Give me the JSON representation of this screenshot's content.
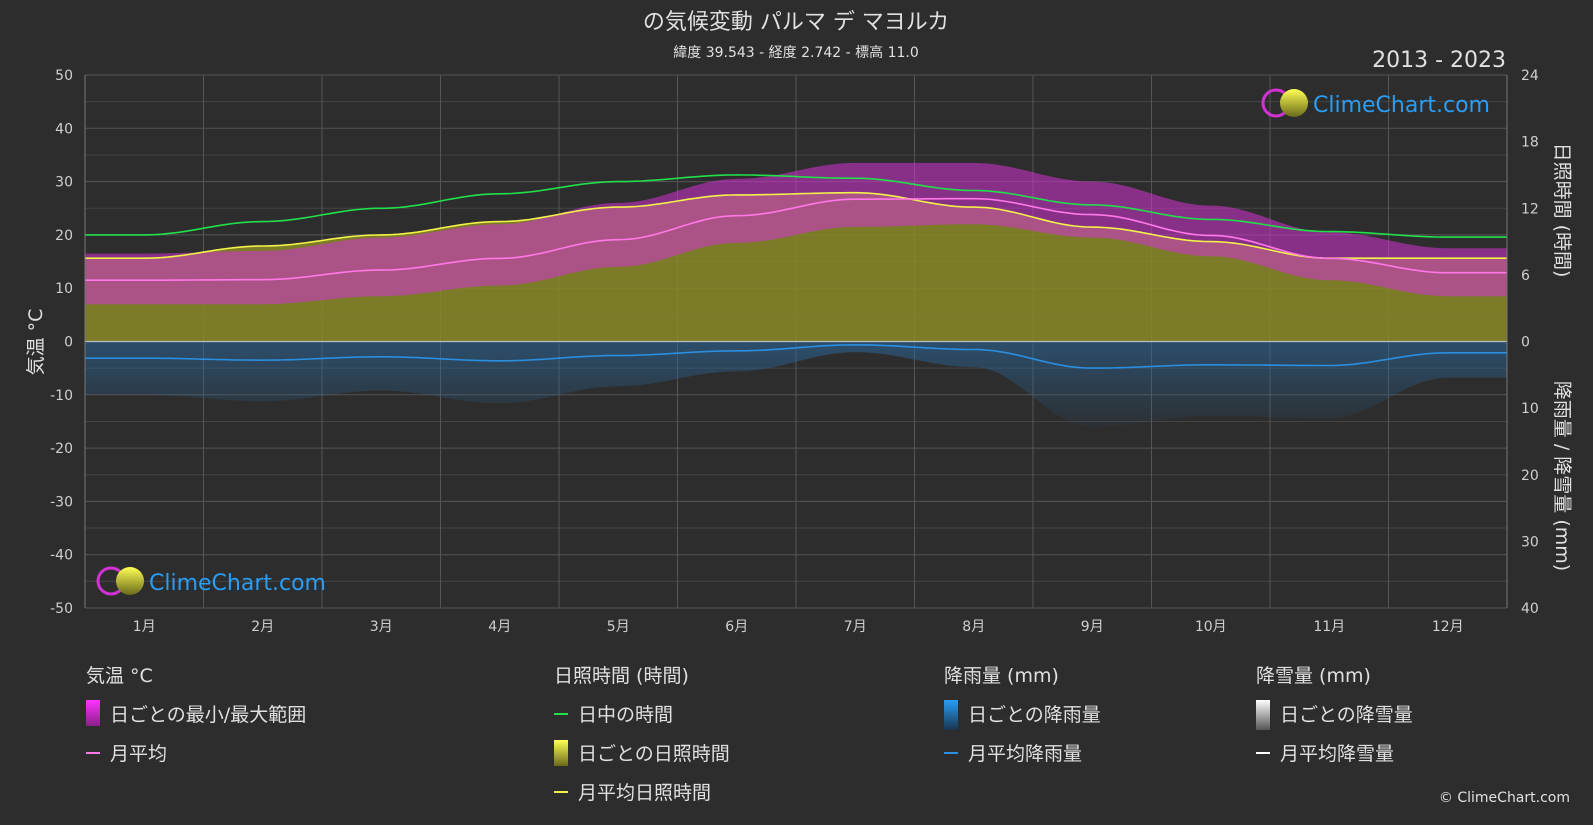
{
  "chart_data": {
    "type": "area",
    "title": "の気候変動 パルマ デ マヨルカ",
    "subtitle": "緯度 39.543 - 経度 2.742 - 標高 11.0",
    "period": "2013 - 2023",
    "ylabel_left": "気温 °C",
    "ylabel_right_top": "日照時間 (時間)",
    "ylabel_right_bottom": "降雨量 / 降雪量 (mm)",
    "categories": [
      "1月",
      "2月",
      "3月",
      "4月",
      "5月",
      "6月",
      "7月",
      "8月",
      "9月",
      "10月",
      "11月",
      "12月"
    ],
    "temp_ticks": [
      "50",
      "40",
      "30",
      "20",
      "10",
      "0",
      "-10",
      "-20",
      "-30",
      "-40",
      "-50"
    ],
    "sun_ticks": [
      "24",
      "18",
      "12",
      "6",
      "0"
    ],
    "rain_ticks": [
      "0",
      "10",
      "20",
      "30",
      "40"
    ],
    "ylim_temp": [
      -50,
      50
    ],
    "ylim_sun": [
      0,
      24
    ],
    "ylim_rain": [
      0,
      40
    ],
    "series": [
      {
        "name": "日中の時間",
        "unit": "hours",
        "values": [
          9.6,
          10.8,
          12.0,
          13.3,
          14.4,
          15.0,
          14.7,
          13.6,
          12.3,
          11.0,
          9.9,
          9.4
        ]
      },
      {
        "name": "月平均日照時間",
        "unit": "hours",
        "values": [
          7.5,
          8.6,
          9.6,
          10.8,
          12.1,
          13.2,
          13.4,
          12.1,
          10.3,
          9.0,
          7.5,
          7.5
        ]
      },
      {
        "name": "月平均",
        "unit": "°C",
        "values": [
          11.5,
          11.6,
          13.4,
          15.6,
          19.1,
          23.6,
          26.7,
          26.8,
          23.8,
          19.9,
          15.6,
          12.9
        ]
      },
      {
        "name": "日ごとの最小/最大範囲",
        "unit": "°C",
        "min": [
          7.0,
          7.0,
          8.5,
          10.5,
          14.0,
          18.5,
          21.5,
          22.0,
          19.5,
          16.0,
          11.5,
          8.5
        ],
        "max": [
          16.5,
          17.0,
          19.5,
          22.0,
          26.0,
          30.5,
          33.5,
          33.5,
          30.0,
          25.5,
          20.5,
          17.5
        ]
      },
      {
        "name": "月平均降雨量",
        "unit": "mm",
        "values": [
          2.5,
          2.8,
          2.3,
          2.9,
          2.1,
          1.4,
          0.5,
          1.2,
          4.0,
          3.5,
          3.6,
          1.7
        ]
      }
    ],
    "grid": true
  },
  "legend": {
    "temp": {
      "title": "気温 °C",
      "items": [
        "日ごとの最小/最大範囲",
        "月平均"
      ]
    },
    "sun": {
      "title": "日照時間 (時間)",
      "items": [
        "日中の時間",
        "日ごとの日照時間",
        "月平均日照時間"
      ]
    },
    "rain": {
      "title": "降雨量 (mm)",
      "items": [
        "日ごとの降雨量",
        "月平均降雨量"
      ]
    },
    "snow": {
      "title": "降雪量 (mm)",
      "items": [
        "日ごとの降雪量",
        "月平均降雪量"
      ]
    }
  },
  "brand": "ClimeChart.com",
  "copyright": "© ClimeChart.com",
  "colors": {
    "daylight": "#22e04a",
    "sunshine": "#f2f24a",
    "sunshine_fill": "#9a9a2c",
    "temp_mean": "#ff78e8",
    "temp_range": "#d431d4",
    "rain": "#2a8fe0",
    "snow": "#ffffff"
  }
}
